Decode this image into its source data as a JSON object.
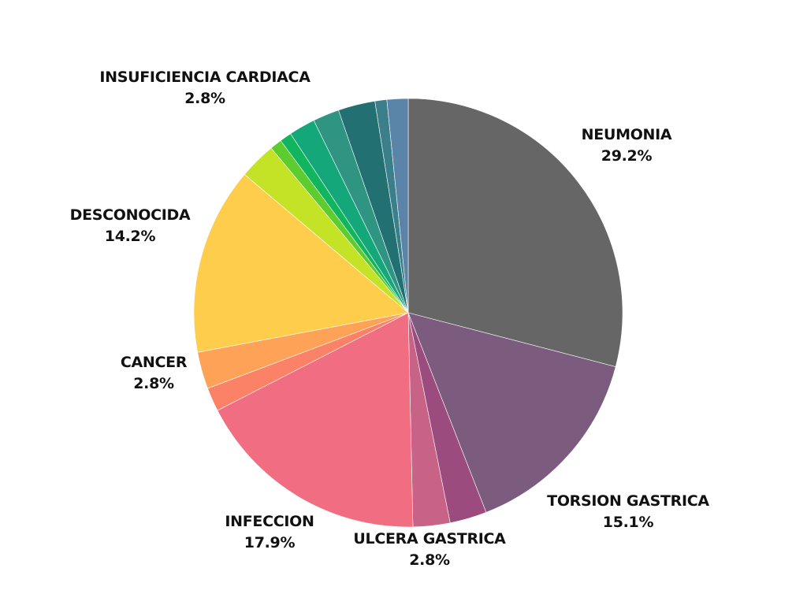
{
  "chart_data": {
    "type": "pie",
    "title": "",
    "start": "top",
    "direction": "clockwise",
    "slices": [
      {
        "name": "NEUMONIA",
        "value": 29.2,
        "label": "29.2%",
        "color": "#666666",
        "labeled": true
      },
      {
        "name": "TORSION GASTRICA",
        "value": 15.1,
        "label": "15.1%",
        "color": "#7b5c7e",
        "labeled": true
      },
      {
        "name": "",
        "value": 2.8,
        "label": "",
        "color": "#9b4b7d",
        "labeled": false
      },
      {
        "name": "ULCERA GASTRICA",
        "value": 2.8,
        "label": "2.8%",
        "color": "#c86287",
        "labeled": true
      },
      {
        "name": "INFECCION",
        "value": 17.9,
        "label": "17.9%",
        "color": "#f06d82",
        "labeled": true
      },
      {
        "name": "",
        "value": 1.8,
        "label": "",
        "color": "#fb8167",
        "labeled": false
      },
      {
        "name": "CANCER",
        "value": 2.8,
        "label": "2.8%",
        "color": "#fda257",
        "labeled": true
      },
      {
        "name": "DESCONOCIDA",
        "value": 14.2,
        "label": "14.2%",
        "color": "#fdcd4b",
        "labeled": true
      },
      {
        "name": "",
        "value": 2.8,
        "label": "",
        "color": "#c4e226",
        "labeled": false
      },
      {
        "name": "",
        "value": 0.9,
        "label": "",
        "color": "#5ccc2e",
        "labeled": false
      },
      {
        "name": "",
        "value": 0.9,
        "label": "",
        "color": "#10b55e",
        "labeled": false
      },
      {
        "name": "",
        "value": 2.0,
        "label": "",
        "color": "#13a77a",
        "labeled": false
      },
      {
        "name": "",
        "value": 2.0,
        "label": "",
        "color": "#2f9482",
        "labeled": false
      },
      {
        "name": "INSUFICIENCIA CARDIACA",
        "value": 2.8,
        "label": "2.8%",
        "color": "#237073",
        "labeled": true
      },
      {
        "name": "",
        "value": 0.9,
        "label": "",
        "color": "#3b7f8b",
        "labeled": false
      },
      {
        "name": "",
        "value": 1.6,
        "label": "",
        "color": "#5a84a8",
        "labeled": false
      }
    ]
  }
}
